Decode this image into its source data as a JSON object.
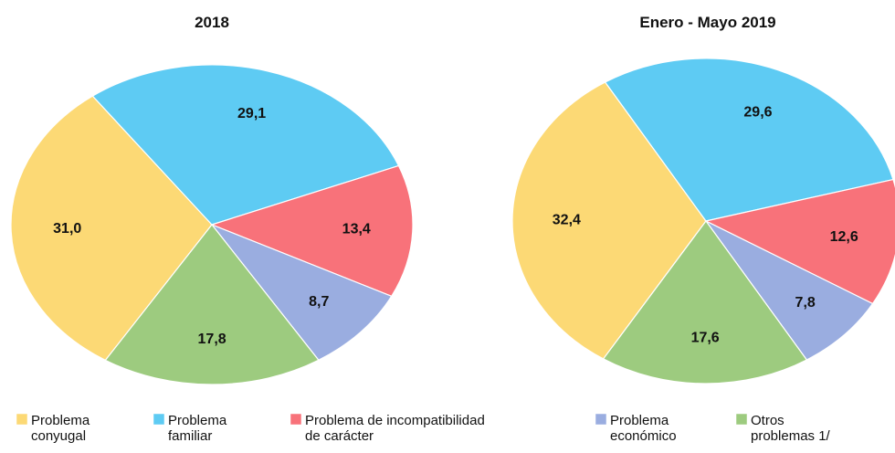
{
  "chart_data": [
    {
      "type": "pie",
      "title": "2018",
      "values": [
        31.0,
        29.1,
        13.4,
        8.7,
        17.8
      ],
      "value_labels": [
        "31,0",
        "29,1",
        "13,4",
        "8,7",
        "17,8"
      ]
    },
    {
      "type": "pie",
      "title": "Enero - Mayo 2019",
      "values": [
        32.4,
        29.6,
        12.6,
        7.8,
        17.6
      ],
      "value_labels": [
        "32,4",
        "29,6",
        "12,6",
        "7,8",
        "17,6"
      ]
    }
  ],
  "legend": {
    "labels": [
      [
        "Problema",
        "conyugal"
      ],
      [
        "Problema",
        "familiar"
      ],
      [
        "Problema de incompatibilidad",
        "de carácter"
      ],
      [
        "Problema",
        "económico"
      ],
      [
        "Otros",
        "problemas 1/"
      ]
    ],
    "colors": [
      "#fcd975",
      "#5ecbf3",
      "#f8727a",
      "#9aade0",
      "#9dcb7f"
    ]
  }
}
